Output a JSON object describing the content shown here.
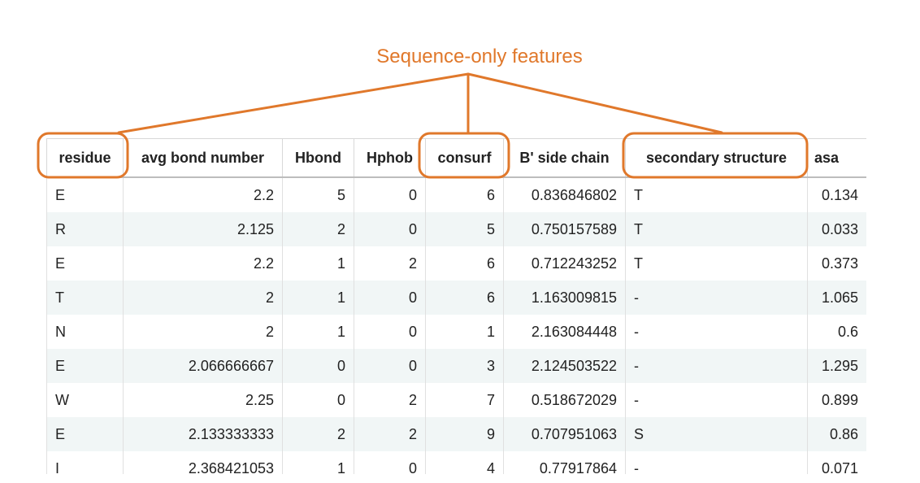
{
  "annotation": {
    "label": "Sequence-only features",
    "color": "#e0782b"
  },
  "table": {
    "columns": [
      "residue",
      "avg bond number",
      "Hbond",
      "Hphob",
      "consurf",
      "B' side chain",
      "secondary structure",
      "asa"
    ],
    "highlighted_columns": [
      "residue",
      "consurf",
      "secondary structure"
    ],
    "rows": [
      [
        "E",
        "2.2",
        "5",
        "0",
        "6",
        "0.836846802",
        "T",
        "0.134"
      ],
      [
        "R",
        "2.125",
        "2",
        "0",
        "5",
        "0.750157589",
        "T",
        "0.033"
      ],
      [
        "E",
        "2.2",
        "1",
        "2",
        "6",
        "0.712243252",
        "T",
        "0.373"
      ],
      [
        "T",
        "2",
        "1",
        "0",
        "6",
        "1.163009815",
        "-",
        "1.065"
      ],
      [
        "N",
        "2",
        "1",
        "0",
        "1",
        "2.163084448",
        "-",
        "0.6"
      ],
      [
        "E",
        "2.066666667",
        "0",
        "0",
        "3",
        "2.124503522",
        "-",
        "1.295"
      ],
      [
        "W",
        "2.25",
        "0",
        "2",
        "7",
        "0.518672029",
        "-",
        "0.899"
      ],
      [
        "E",
        "2.133333333",
        "2",
        "2",
        "9",
        "0.707951063",
        "S",
        "0.86"
      ],
      [
        "I",
        "2.368421053",
        "1",
        "0",
        "4",
        "0.77917864",
        "-",
        "0.071"
      ]
    ]
  }
}
